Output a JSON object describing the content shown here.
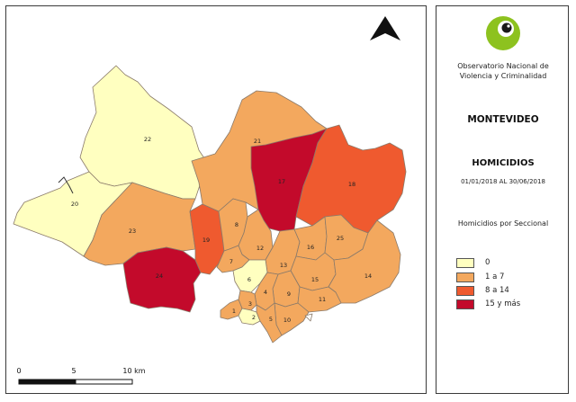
{
  "colors": {
    "class_0": "#ffffc0",
    "class_1_7": "#f3a85e",
    "class_8_14": "#ef5a2f",
    "class_15_plus": "#c30a2b",
    "border": "#8a7a6a",
    "logo_green": "#8dc21f"
  },
  "map": {
    "north_arrow_icon": "north-arrow-icon",
    "seccionales": [
      {
        "label": "22",
        "homicidios_class": "0"
      },
      {
        "label": "20",
        "homicidios_class": "0"
      },
      {
        "label": "23",
        "homicidios_class": "1 a 7"
      },
      {
        "label": "24",
        "homicidios_class": "15 y más"
      },
      {
        "label": "19",
        "homicidios_class": "8 a 14"
      },
      {
        "label": "21",
        "homicidios_class": "1 a 7"
      },
      {
        "label": "17",
        "homicidios_class": "15 y más"
      },
      {
        "label": "18",
        "homicidios_class": "8 a 14"
      },
      {
        "label": "8",
        "homicidios_class": "1 a 7"
      },
      {
        "label": "12",
        "homicidios_class": "1 a 7"
      },
      {
        "label": "7",
        "homicidios_class": "1 a 7"
      },
      {
        "label": "13",
        "homicidios_class": "1 a 7"
      },
      {
        "label": "16",
        "homicidios_class": "1 a 7"
      },
      {
        "label": "25",
        "homicidios_class": "1 a 7"
      },
      {
        "label": "15",
        "homicidios_class": "1 a 7"
      },
      {
        "label": "14",
        "homicidios_class": "1 a 7"
      },
      {
        "label": "9",
        "homicidios_class": "1 a 7"
      },
      {
        "label": "11",
        "homicidios_class": "1 a 7"
      },
      {
        "label": "10",
        "homicidios_class": "1 a 7"
      },
      {
        "label": "6",
        "homicidios_class": "0"
      },
      {
        "label": "4",
        "homicidios_class": "1 a 7"
      },
      {
        "label": "3",
        "homicidios_class": "1 a 7"
      },
      {
        "label": "1",
        "homicidios_class": "1 a 7"
      },
      {
        "label": "2",
        "homicidios_class": "0"
      },
      {
        "label": "5",
        "homicidios_class": "1 a 7"
      }
    ],
    "scale": {
      "labels": [
        "0",
        "5",
        "10 km"
      ]
    }
  },
  "panel": {
    "logo_icon": "eye-logo-icon",
    "org_line1": "Observatorio Nacional de",
    "org_line2": "Violencia y Criminalidad",
    "city": "MONTEVIDEO",
    "topic": "HOMICIDIOS",
    "period": "01/01/2018 AL 30/06/2018",
    "legend_title": "Homicidios por Seccional",
    "legend": [
      {
        "label": "0",
        "color": "#ffffc0"
      },
      {
        "label": "1 a 7",
        "color": "#f3a85e"
      },
      {
        "label": "8 a 14",
        "color": "#ef5a2f"
      },
      {
        "label": "15 y más",
        "color": "#c30a2b"
      }
    ]
  }
}
